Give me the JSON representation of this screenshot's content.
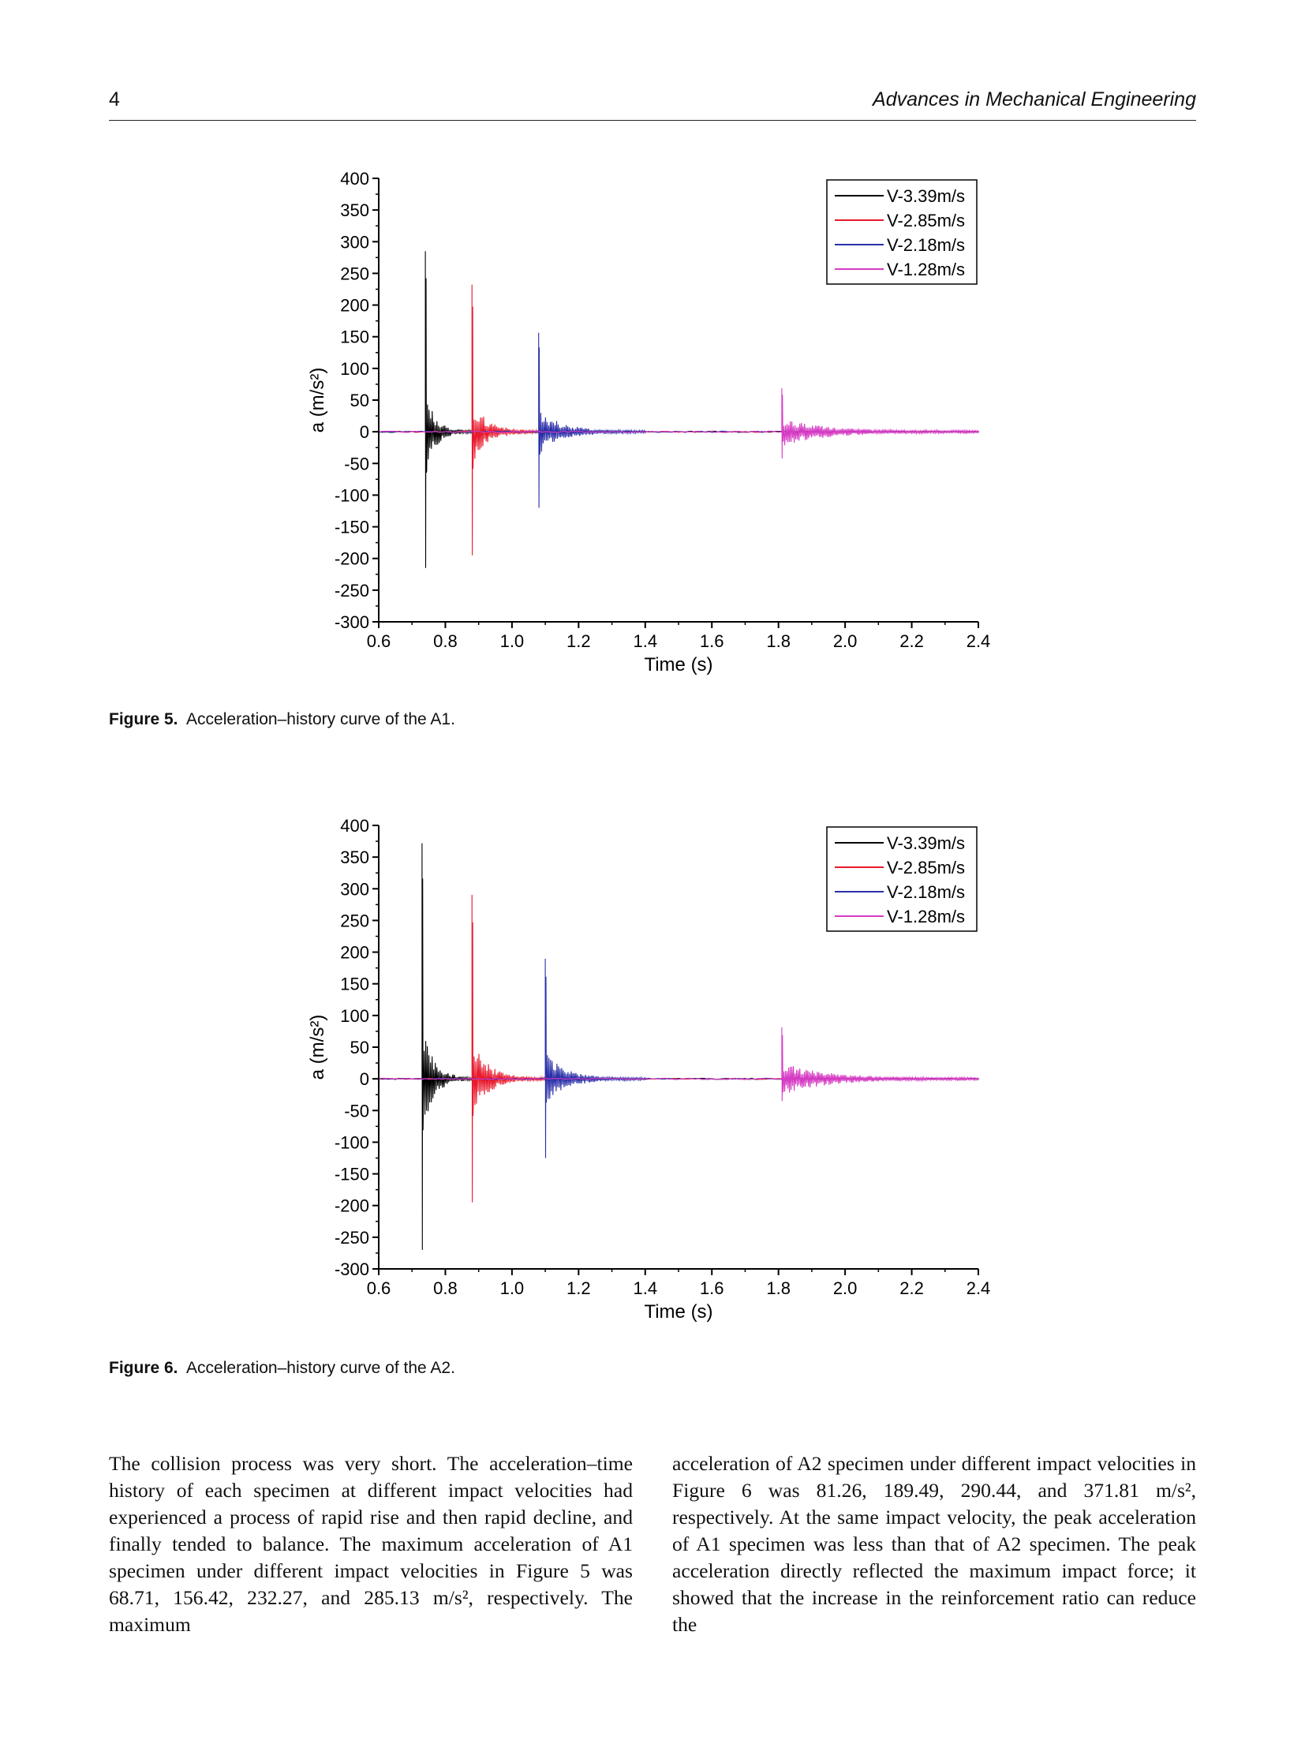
{
  "header": {
    "page_number": "4",
    "journal": "Advances in Mechanical Engineering"
  },
  "figures": [
    {
      "label": "Figure 5.",
      "caption": "Acceleration–history curve of the A1."
    },
    {
      "label": "Figure 6.",
      "caption": "Acceleration–history curve of the A2."
    }
  ],
  "body": {
    "left": "The collision process was very short. The acceleration–time history of each specimen at different impact velocities had experienced a process of rapid rise and then rapid decline, and finally tended to balance. The maximum acceleration of A1 specimen under different impact velocities in Figure 5 was 68.71, 156.42, 232.27, and 285.13 m/s², respectively. The maximum",
    "right": "acceleration of A2 specimen under different impact velocities in Figure 6 was 81.26, 189.49, 290.44, and 371.81 m/s², respectively. At the same impact velocity, the peak acceleration of A1 specimen was less than that of A2 specimen. The peak acceleration directly reflected the maximum impact force; it showed that the increase in the reinforcement ratio can reduce the"
  },
  "colors": {
    "V-3.39m/s": "#000000",
    "V-2.85m/s": "#e8192c",
    "V-2.18m/s": "#2a2fa8",
    "V-1.28m/s": "#d63bc4"
  },
  "chart_data": [
    {
      "type": "line",
      "xlabel": "Time (s)",
      "ylabel": "a (m/s²)",
      "xlim": [
        0.6,
        2.4
      ],
      "ylim": [
        -300,
        400
      ],
      "xticks": [
        "0.6",
        "0.8",
        "1.0",
        "1.2",
        "1.4",
        "1.6",
        "1.8",
        "2.0",
        "2.2",
        "2.4"
      ],
      "yticks": [
        "400",
        "350",
        "300",
        "250",
        "200",
        "150",
        "100",
        "50",
        "0",
        "-50",
        "-100",
        "-150",
        "-200",
        "-250",
        "-300"
      ],
      "legend_position": "top-right",
      "grid": false,
      "series": [
        {
          "name": "V-3.39m/s",
          "impact_time": 0.74,
          "peak": 285.13,
          "min": -215,
          "ring": 70,
          "end_time": 0.88
        },
        {
          "name": "V-2.85m/s",
          "impact_time": 0.88,
          "peak": 232.27,
          "min": -195,
          "ring": 50,
          "end_time": 1.1
        },
        {
          "name": "V-2.18m/s",
          "impact_time": 1.08,
          "peak": 156.42,
          "min": -120,
          "ring": 35,
          "end_time": 1.4
        },
        {
          "name": "V-1.28m/s",
          "impact_time": 1.81,
          "peak": 68.71,
          "min": -42,
          "ring": 22,
          "end_time": 2.4
        }
      ]
    },
    {
      "type": "line",
      "xlabel": "Time (s)",
      "ylabel": "a (m/s²)",
      "xlim": [
        0.6,
        2.4
      ],
      "ylim": [
        -300,
        400
      ],
      "xticks": [
        "0.6",
        "0.8",
        "1.0",
        "1.2",
        "1.4",
        "1.6",
        "1.8",
        "2.0",
        "2.2",
        "2.4"
      ],
      "yticks": [
        "400",
        "350",
        "300",
        "250",
        "200",
        "150",
        "100",
        "50",
        "0",
        "-50",
        "-100",
        "-150",
        "-200",
        "-250",
        "-300"
      ],
      "legend_position": "top-right",
      "grid": false,
      "series": [
        {
          "name": "V-3.39m/s",
          "impact_time": 0.73,
          "peak": 371.81,
          "min": -270,
          "ring": 90,
          "end_time": 0.89
        },
        {
          "name": "V-2.85m/s",
          "impact_time": 0.88,
          "peak": 290.44,
          "min": -195,
          "ring": 65,
          "end_time": 1.1
        },
        {
          "name": "V-2.18m/s",
          "impact_time": 1.1,
          "peak": 189.49,
          "min": -125,
          "ring": 40,
          "end_time": 1.4
        },
        {
          "name": "V-1.28m/s",
          "impact_time": 1.81,
          "peak": 81.26,
          "min": -35,
          "ring": 25,
          "end_time": 2.4
        }
      ]
    }
  ]
}
